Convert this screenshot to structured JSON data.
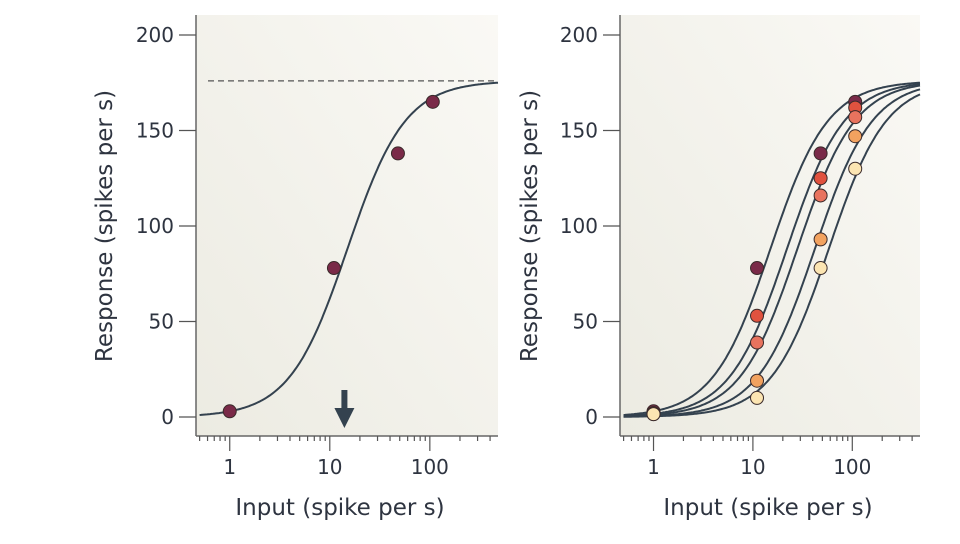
{
  "chart_data": [
    {
      "type": "scatter",
      "xlabel": "Input (spike per s)",
      "ylabel": "Response (spikes per s)",
      "x_scale": "log",
      "xlim": [
        0.46,
        480
      ],
      "ylim": [
        0,
        200
      ],
      "x_ticks": [
        1,
        10,
        100
      ],
      "x_tick_labels": [
        "1",
        "10",
        "100"
      ],
      "y_ticks": [
        0,
        50,
        100,
        150,
        200
      ],
      "y_tick_labels": [
        "0",
        "50",
        "100",
        "150",
        "200"
      ],
      "grid": false,
      "max_response_dashed_line": 176,
      "arrow_at_x": 14,
      "series": [
        {
          "color": "#7a2a48",
          "x": [
            1,
            11,
            48,
            107
          ],
          "y": [
            3,
            78,
            138,
            165
          ],
          "fit": {
            "rmax": 176,
            "half": 15,
            "n": 1.5
          }
        }
      ]
    },
    {
      "type": "scatter",
      "xlabel": "Input (spike per s)",
      "ylabel": "Response (spikes per s)",
      "x_scale": "log",
      "xlim": [
        0.46,
        480
      ],
      "ylim": [
        0,
        200
      ],
      "x_ticks": [
        1,
        10,
        100
      ],
      "x_tick_labels": [
        "1",
        "10",
        "100"
      ],
      "y_ticks": [
        0,
        50,
        100,
        150,
        200
      ],
      "y_tick_labels": [
        "0",
        "50",
        "100",
        "150",
        "200"
      ],
      "grid": false,
      "series": [
        {
          "color": "#7a2a48",
          "x": [
            1,
            11,
            48,
            107
          ],
          "y": [
            3,
            78,
            138,
            165
          ],
          "fit": {
            "rmax": 176,
            "half": 15,
            "n": 1.5
          }
        },
        {
          "color": "#e0523f",
          "x": [
            1,
            11,
            48,
            107
          ],
          "y": [
            2,
            53,
            125,
            162
          ],
          "fit": {
            "rmax": 176,
            "half": 22,
            "n": 1.5
          }
        },
        {
          "color": "#e8735e",
          "x": [
            1,
            11,
            48,
            107
          ],
          "y": [
            2,
            39,
            116,
            157
          ],
          "fit": {
            "rmax": 176,
            "half": 28,
            "n": 1.5
          }
        },
        {
          "color": "#f2a25f",
          "x": [
            1,
            11,
            48,
            107
          ],
          "y": [
            1.5,
            19,
            93,
            147
          ],
          "fit": {
            "rmax": 176,
            "half": 42,
            "n": 1.5
          }
        },
        {
          "color": "#fce5b2",
          "x": [
            1,
            11,
            48,
            107
          ],
          "y": [
            1.5,
            10,
            78,
            130
          ],
          "fit": {
            "rmax": 176,
            "half": 58,
            "n": 1.5
          }
        }
      ]
    }
  ]
}
